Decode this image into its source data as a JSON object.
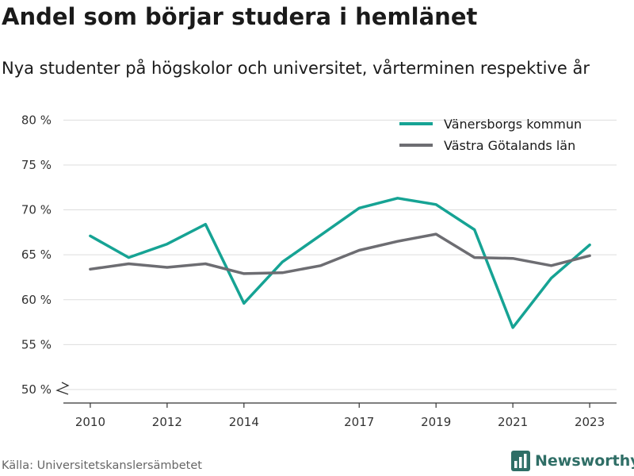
{
  "title": "Andel som börjar studera i hemlänet",
  "subtitle": "Nya studenter på högskolor och universitet, vårterminen respektive år",
  "source": "Källa: Universitetskanslersämbetet",
  "brand": {
    "name": "Newsworthy",
    "icon": "bar-chart-logo-icon",
    "color": "#2f6e66"
  },
  "chart_data": {
    "type": "line",
    "x": [
      2010,
      2011,
      2012,
      2013,
      2014,
      2015,
      2016,
      2017,
      2018,
      2019,
      2020,
      2021,
      2022,
      2023
    ],
    "x_ticks": [
      2010,
      2012,
      2014,
      2017,
      2019,
      2021,
      2023
    ],
    "y_ticks": [
      50,
      55,
      60,
      65,
      70,
      75,
      80
    ],
    "y_tick_suffix": " %",
    "ylim": [
      48.5,
      81
    ],
    "y_axis_break": true,
    "grid": true,
    "legend_position": "top-right",
    "series": [
      {
        "name": "Vänersborgs kommun",
        "color": "#16a394",
        "values": [
          67.1,
          64.7,
          66.2,
          68.4,
          59.6,
          64.2,
          67.2,
          70.2,
          71.3,
          70.6,
          67.8,
          56.9,
          62.4,
          66.1
        ]
      },
      {
        "name": "Västra Götalands län",
        "color": "#6d6d72",
        "values": [
          63.4,
          64.0,
          63.6,
          64.0,
          62.9,
          63.0,
          63.8,
          65.5,
          66.5,
          67.3,
          64.7,
          64.6,
          63.8,
          64.9
        ]
      }
    ]
  }
}
